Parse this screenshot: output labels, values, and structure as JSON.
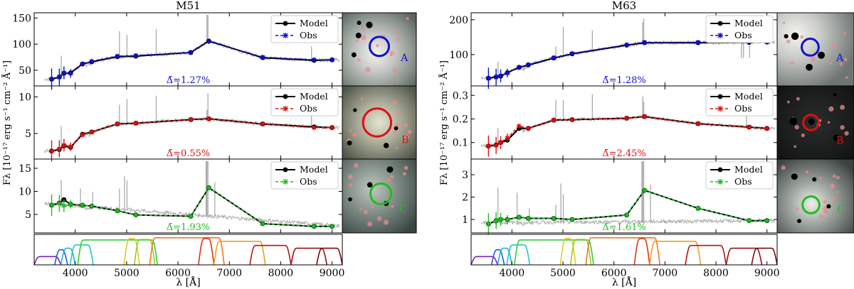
{
  "figure": {
    "ylabel": "Fλ [10⁻¹⁷ erg s⁻¹ cm⁻² Å⁻¹]",
    "xlabel": "λ [Å]",
    "legend": {
      "model": "Model",
      "obs": "Obs"
    },
    "colors": {
      "model": "#000000",
      "spectrum": "#aaaaaa",
      "A": "#1010cc",
      "B": "#dd1010",
      "C": "#22bb22"
    },
    "filter_colors": [
      "#7a1fc4",
      "#2255ee",
      "#22aaee",
      "#22ccbb",
      "#33cc33",
      "#99cc22",
      "#ddcc22",
      "#f0a020",
      "#ee7722",
      "#dd3311",
      "#bb1111",
      "#991010",
      "#7a0a0a"
    ]
  },
  "chart_data": [
    {
      "type": "line",
      "title": "M51",
      "panel": "A",
      "x": [
        3540,
        3690,
        3780,
        3910,
        4140,
        4320,
        4820,
        5180,
        6250,
        6600,
        7650,
        8650,
        9000
      ],
      "series": [
        {
          "name": "Model",
          "values": [
            33,
            37,
            44,
            45,
            62,
            66,
            76,
            77,
            84,
            106,
            74,
            69,
            70
          ]
        },
        {
          "name": "Obs",
          "values": [
            33,
            37,
            45,
            44,
            62,
            67,
            77,
            78,
            84,
            105,
            75,
            70,
            70
          ]
        }
      ],
      "xlim": [
        3200,
        9200
      ],
      "ylim": [
        20,
        160
      ],
      "yticks": [
        50,
        100,
        150
      ],
      "xticks": [
        4000,
        5000,
        6000,
        7000,
        8000,
        9000
      ],
      "annotation": "Δ̄=1.27%",
      "region_label": "A"
    },
    {
      "type": "line",
      "title": "",
      "panel": "B",
      "x": [
        3540,
        3690,
        3780,
        3910,
        4140,
        4320,
        4820,
        5180,
        6250,
        6600,
        7650,
        8650,
        9000
      ],
      "series": [
        {
          "name": "Model",
          "values": [
            2.6,
            2.8,
            3.3,
            3.1,
            4.9,
            5.2,
            6.3,
            6.4,
            6.9,
            7.0,
            6.3,
            5.9,
            5.8
          ]
        },
        {
          "name": "Obs",
          "values": [
            2.6,
            2.9,
            3.4,
            3.2,
            4.8,
            5.2,
            6.3,
            6.4,
            6.9,
            7.0,
            6.3,
            5.8,
            5.8
          ]
        }
      ],
      "xlim": [
        3200,
        9200
      ],
      "ylim": [
        1.5,
        11.5
      ],
      "yticks": [
        5,
        10
      ],
      "xticks": [
        4000,
        5000,
        6000,
        7000,
        8000,
        9000
      ],
      "annotation": "Δ̄=0.55%",
      "region_label": "B"
    },
    {
      "type": "line",
      "title": "",
      "panel": "C",
      "x": [
        3540,
        3690,
        3780,
        3910,
        4140,
        4320,
        4820,
        5180,
        6250,
        6600,
        7650,
        8650,
        9000
      ],
      "series": [
        {
          "name": "Model",
          "values": [
            7.0,
            7.5,
            8.2,
            7.2,
            7.0,
            6.8,
            5.8,
            4.9,
            4.6,
            10.8,
            3.0,
            2.4,
            2.4
          ]
        },
        {
          "name": "Obs",
          "values": [
            7.0,
            7.4,
            6.9,
            7.2,
            7.0,
            6.8,
            5.8,
            4.9,
            4.6,
            10.8,
            3.0,
            2.4,
            2.4
          ]
        }
      ],
      "xlim": [
        3200,
        9200
      ],
      "ylim": [
        1.0,
        17.0
      ],
      "yticks": [
        5,
        10,
        15
      ],
      "xticks": [
        4000,
        5000,
        6000,
        7000,
        8000,
        9000
      ],
      "annotation": "Δ̄=1.93%",
      "region_label": "C"
    },
    {
      "type": "line",
      "title": "M63",
      "panel": "A",
      "x": [
        3540,
        3690,
        3780,
        3910,
        4140,
        4320,
        4820,
        5180,
        6250,
        6600,
        7650,
        8650,
        9000
      ],
      "series": [
        {
          "name": "Model",
          "values": [
            32,
            36,
            38,
            48,
            63,
            70,
            90,
            102,
            127,
            134,
            134,
            135,
            136
          ]
        },
        {
          "name": "Obs",
          "values": [
            32,
            35,
            39,
            47,
            64,
            71,
            91,
            103,
            128,
            135,
            135,
            136,
            136
          ]
        }
      ],
      "xlim": [
        3200,
        9200
      ],
      "ylim": [
        10,
        220
      ],
      "yticks": [
        100,
        200
      ],
      "xticks": [
        4000,
        5000,
        6000,
        7000,
        8000,
        9000
      ],
      "annotation": "Δ̄=1.28%",
      "region_label": "A"
    },
    {
      "type": "line",
      "title": "",
      "panel": "B",
      "x": [
        3540,
        3690,
        3780,
        3910,
        4140,
        4320,
        4820,
        5180,
        6250,
        6600,
        7650,
        8650,
        9000
      ],
      "series": [
        {
          "name": "Model",
          "values": [
            0.085,
            0.09,
            0.1,
            0.11,
            0.16,
            0.16,
            0.195,
            0.197,
            0.203,
            0.21,
            0.18,
            0.165,
            0.16
          ]
        },
        {
          "name": "Obs",
          "values": [
            0.085,
            0.088,
            0.1,
            0.12,
            0.17,
            0.16,
            0.195,
            0.197,
            0.203,
            0.21,
            0.18,
            0.165,
            0.16
          ]
        }
      ],
      "xlim": [
        3200,
        9200
      ],
      "ylim": [
        0.03,
        0.34
      ],
      "yticks": [
        0.1,
        0.2,
        0.3
      ],
      "xticks": [
        4000,
        5000,
        6000,
        7000,
        8000,
        9000
      ],
      "annotation": "Δ̄=2.45%",
      "region_label": "B"
    },
    {
      "type": "line",
      "title": "",
      "panel": "C",
      "x": [
        3540,
        3690,
        3780,
        3910,
        4140,
        4320,
        4820,
        5180,
        6250,
        6600,
        7650,
        8650,
        9000
      ],
      "series": [
        {
          "name": "Model",
          "values": [
            0.8,
            0.95,
            1.0,
            1.0,
            1.1,
            1.05,
            1.05,
            1.0,
            1.2,
            2.3,
            1.5,
            0.95,
            0.95
          ]
        },
        {
          "name": "Obs",
          "values": [
            0.8,
            0.95,
            1.0,
            1.0,
            1.1,
            1.05,
            1.05,
            1.0,
            1.2,
            2.3,
            1.5,
            0.95,
            0.95
          ]
        }
      ],
      "xlim": [
        3200,
        9200
      ],
      "ylim": [
        0.4,
        3.7
      ],
      "yticks": [
        1,
        2,
        3
      ],
      "xticks": [
        4000,
        5000,
        6000,
        7000,
        8000,
        9000
      ],
      "annotation": "Δ̄=1.61%",
      "region_label": "C"
    }
  ]
}
